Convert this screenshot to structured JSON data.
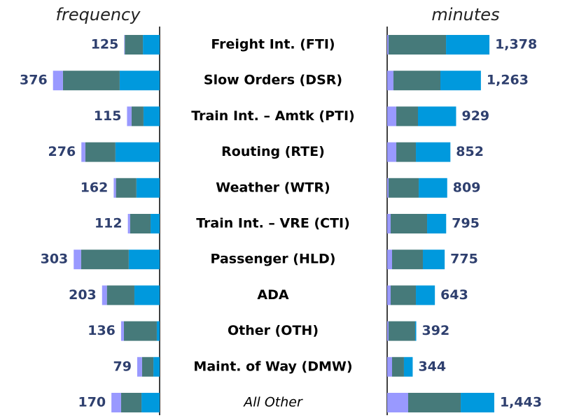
{
  "chart_data": [
    {
      "type": "bar",
      "orientation": "horizontal",
      "direction": "left",
      "axis_label": "frequency",
      "categories": [
        "Freight Int. (FTI)",
        "Slow Orders (DSR)",
        "Train Int. – Amtk (PTI)",
        "Routing (RTE)",
        "Weather (WTR)",
        "Train Int. – VRE (CTI)",
        "Passenger (HLD)",
        "ADA",
        "Other (OTH)",
        "Maint. of Way (DMW)",
        "All Other"
      ],
      "xlim": [
        0,
        400
      ],
      "series": [
        {
          "color": "#0099dd",
          "values": [
            59,
            141,
            57,
            156,
            82,
            32,
            109,
            89,
            10,
            22,
            64
          ]
        },
        {
          "color": "#467a7a",
          "values": [
            64,
            200,
            42,
            106,
            72,
            72,
            168,
            97,
            116,
            40,
            72
          ]
        },
        {
          "color": "#9999ff",
          "values": [
            2,
            35,
            16,
            14,
            8,
            8,
            26,
            17,
            10,
            17,
            34
          ]
        }
      ],
      "totals": [
        125,
        376,
        115,
        276,
        162,
        112,
        303,
        203,
        136,
        79,
        170
      ]
    },
    {
      "type": "bar",
      "orientation": "horizontal",
      "direction": "right",
      "axis_label": "minutes",
      "xlim": [
        0,
        1500
      ],
      "series": [
        {
          "color": "#9999ff",
          "values": [
            19,
            85,
            123,
            123,
            19,
            47,
            66,
            47,
            19,
            66,
            283
          ]
        },
        {
          "color": "#467a7a",
          "values": [
            774,
            632,
            292,
            264,
            406,
            491,
            415,
            340,
            358,
            160,
            708
          ]
        },
        {
          "color": "#0099dd",
          "values": [
            585,
            546,
            514,
            465,
            384,
            257,
            294,
            256,
            15,
            118,
            452
          ]
        }
      ],
      "totals": [
        1378,
        1263,
        929,
        852,
        809,
        795,
        775,
        643,
        392,
        344,
        1443
      ],
      "total_labels": [
        "1,378",
        "1,263",
        "929",
        "852",
        "809",
        "795",
        "775",
        "643",
        "392",
        "344",
        "1,443"
      ]
    }
  ]
}
